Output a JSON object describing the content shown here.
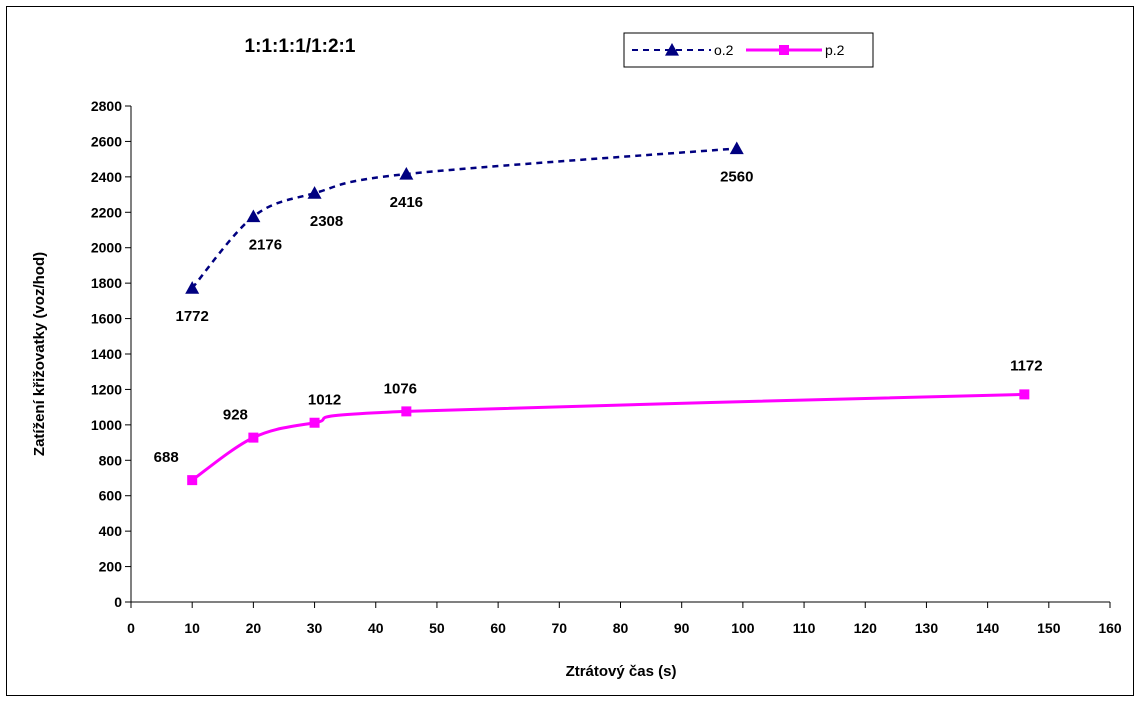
{
  "chart_data": {
    "type": "line",
    "title": "1:1:1:1/1:2:1",
    "xlabel": "Ztrátový čas (s)",
    "ylabel": "Zatížení křižovatky (voz/hod)",
    "xlim": [
      0,
      160
    ],
    "ylim": [
      0,
      2800
    ],
    "xticks": [
      0,
      10,
      20,
      30,
      40,
      50,
      60,
      70,
      80,
      90,
      100,
      110,
      120,
      130,
      140,
      150,
      160
    ],
    "yticks": [
      0,
      200,
      400,
      600,
      800,
      1000,
      1200,
      1400,
      1600,
      1800,
      2000,
      2200,
      2400,
      2600,
      2800
    ],
    "grid": false,
    "legend_position": "top",
    "series": [
      {
        "name": "o.2",
        "color": "#000080",
        "line_style": "dashed",
        "marker": "triangle",
        "x": [
          10,
          20,
          30,
          45,
          99
        ],
        "y": [
          1772,
          2176,
          2308,
          2416,
          2560
        ],
        "labels": [
          "1772",
          "2176",
          "2308",
          "2416",
          "2560"
        ],
        "label_position": "below"
      },
      {
        "name": "p.2",
        "color": "#ff00ff",
        "line_style": "solid",
        "marker": "square",
        "x": [
          10,
          20,
          30,
          45,
          146
        ],
        "y": [
          688,
          928,
          1012,
          1076,
          1172
        ],
        "labels": [
          "688",
          "928",
          "1012",
          "1076",
          "1172"
        ],
        "label_position": "above"
      }
    ]
  }
}
